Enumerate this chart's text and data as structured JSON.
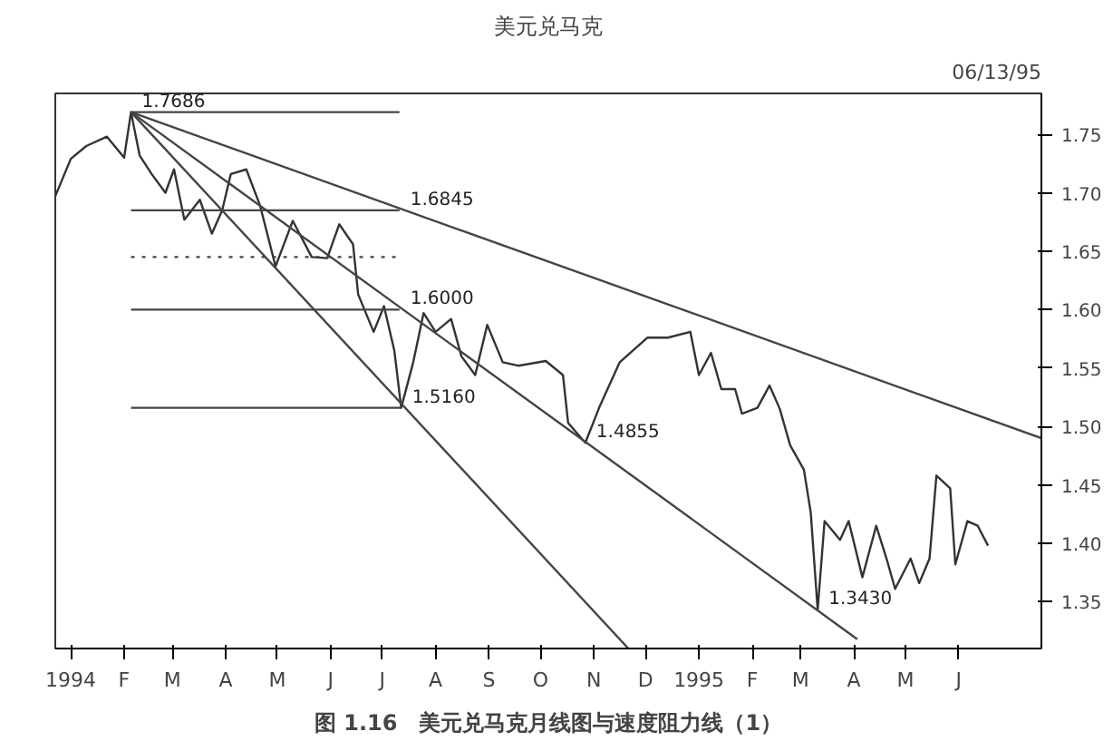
{
  "chart_data": {
    "type": "line",
    "title": "美元兑马克",
    "subtitle": "06/13/95",
    "xlim": [
      "1993-12-23",
      "1995-07-19"
    ],
    "ylim": [
      1.31,
      1.785
    ],
    "xticks": [
      {
        "value": "1994-01-01",
        "label": "1994"
      },
      {
        "value": "1994-02-01",
        "label": "F"
      },
      {
        "value": "1994-03-01",
        "label": "M"
      },
      {
        "value": "1994-04-01",
        "label": "A"
      },
      {
        "value": "1994-05-01",
        "label": "M"
      },
      {
        "value": "1994-06-01",
        "label": "J"
      },
      {
        "value": "1994-07-01",
        "label": "J"
      },
      {
        "value": "1994-08-01",
        "label": "A"
      },
      {
        "value": "1994-09-01",
        "label": "S"
      },
      {
        "value": "1994-10-01",
        "label": "O"
      },
      {
        "value": "1994-11-01",
        "label": "N"
      },
      {
        "value": "1994-12-01",
        "label": "D"
      },
      {
        "value": "1995-01-01",
        "label": "1995"
      },
      {
        "value": "1995-02-01",
        "label": "F"
      },
      {
        "value": "1995-03-01",
        "label": "M"
      },
      {
        "value": "1995-04-01",
        "label": "A"
      },
      {
        "value": "1995-05-01",
        "label": "M"
      },
      {
        "value": "1995-06-01",
        "label": "J"
      }
    ],
    "yticks": [
      {
        "value": 1.35,
        "label": "1.35"
      },
      {
        "value": 1.4,
        "label": "1.40"
      },
      {
        "value": 1.45,
        "label": "1.45"
      },
      {
        "value": 1.5,
        "label": "1.50"
      },
      {
        "value": 1.55,
        "label": "1.55"
      },
      {
        "value": 1.6,
        "label": "1.60"
      },
      {
        "value": 1.65,
        "label": "1.65"
      },
      {
        "value": 1.7,
        "label": "1.70"
      },
      {
        "value": 1.75,
        "label": "1.75"
      }
    ],
    "grid": false,
    "marker": "none",
    "series": [
      {
        "color": "#333333",
        "x": [
          "1993-12-23",
          "1994-01-01",
          "1994-01-10",
          "1994-01-22",
          "1994-02-01",
          "1994-02-05",
          "1994-02-10",
          "1994-02-17",
          "1994-02-25",
          "1994-03-02",
          "1994-03-08",
          "1994-03-17",
          "1994-03-24",
          "1994-03-30",
          "1994-04-04",
          "1994-04-13",
          "1994-04-21",
          "1994-04-30",
          "1994-05-10",
          "1994-05-21",
          "1994-05-30",
          "1994-06-06",
          "1994-06-14",
          "1994-06-17",
          "1994-06-26",
          "1994-07-02",
          "1994-07-08",
          "1994-07-12",
          "1994-07-19",
          "1994-07-25",
          "1994-08-01",
          "1994-08-10",
          "1994-08-16",
          "1994-08-24",
          "1994-08-31",
          "1994-09-09",
          "1994-09-18",
          "1994-10-04",
          "1994-10-14",
          "1994-10-17",
          "1994-10-27",
          "1994-11-04",
          "1994-11-16",
          "1994-12-02",
          "1994-12-14",
          "1994-12-27",
          "1995-01-01",
          "1995-01-08",
          "1995-01-14",
          "1995-01-22",
          "1995-01-26",
          "1995-02-04",
          "1995-02-11",
          "1995-02-17",
          "1995-02-23",
          "1995-03-03",
          "1995-03-07",
          "1995-03-11",
          "1995-03-15",
          "1995-03-24",
          "1995-03-29",
          "1995-04-06",
          "1995-04-14",
          "1995-04-20",
          "1995-04-25",
          "1995-05-04",
          "1995-05-09",
          "1995-05-15",
          "1995-05-19",
          "1995-05-27",
          "1995-05-30",
          "1995-06-06",
          "1995-06-12",
          "1995-06-18"
        ],
        "values": [
          1.697,
          1.729,
          1.74,
          1.748,
          1.73,
          1.769,
          1.732,
          1.716,
          1.7,
          1.72,
          1.677,
          1.694,
          1.665,
          1.685,
          1.716,
          1.72,
          1.689,
          1.637,
          1.676,
          1.645,
          1.644,
          1.673,
          1.656,
          1.613,
          1.581,
          1.603,
          1.565,
          1.516,
          1.555,
          1.597,
          1.581,
          1.592,
          1.56,
          1.544,
          1.587,
          1.555,
          1.552,
          1.556,
          1.544,
          1.503,
          1.486,
          1.516,
          1.555,
          1.576,
          1.576,
          1.581,
          1.544,
          1.563,
          1.532,
          1.532,
          1.511,
          1.516,
          1.535,
          1.515,
          1.484,
          1.463,
          1.426,
          1.343,
          1.419,
          1.403,
          1.419,
          1.371,
          1.415,
          1.387,
          1.361,
          1.387,
          1.366,
          1.387,
          1.458,
          1.447,
          1.382,
          1.419,
          1.415,
          1.398
        ]
      },
      {
        "color": "#444444",
        "x": [
          "1994-02-05",
          "1995-07-19"
        ],
        "values": [
          1.769,
          1.49
        ]
      },
      {
        "color": "#444444",
        "x": [
          "1994-02-05",
          "1995-04-03"
        ],
        "values": [
          1.769,
          1.318
        ]
      },
      {
        "color": "#444444",
        "x": [
          "1994-02-05",
          "1994-11-21"
        ],
        "values": [
          1.769,
          1.31
        ]
      },
      {
        "color": "#444444",
        "x": [
          "1994-02-05",
          "1994-07-11"
        ],
        "values": [
          1.769,
          1.769
        ]
      },
      {
        "color": "#444444",
        "x": [
          "1994-02-05",
          "1994-07-11"
        ],
        "values": [
          1.685,
          1.685
        ]
      },
      {
        "color": "#444444",
        "x": [
          "1994-02-05",
          "1994-07-11"
        ],
        "values": [
          1.645,
          1.645
        ],
        "line_style": "dotted"
      },
      {
        "color": "#444444",
        "x": [
          "1994-02-05",
          "1994-07-11"
        ],
        "values": [
          1.6,
          1.6
        ]
      },
      {
        "color": "#444444",
        "x": [
          "1994-02-05",
          "1994-07-12"
        ],
        "values": [
          1.516,
          1.516
        ]
      }
    ],
    "annotations": [
      {
        "text": "1.7686",
        "x": "1994-02-05",
        "y": 1.769
      },
      {
        "text": "1.6845",
        "x": "1994-07-11",
        "y": 1.685
      },
      {
        "text": "1.6000",
        "x": "1994-07-11",
        "y": 1.6
      },
      {
        "text": "1.5160",
        "x": "1994-07-12",
        "y": 1.516
      },
      {
        "text": "1.4855",
        "x": "1994-10-27",
        "y": 1.486
      },
      {
        "text": "1.3430",
        "x": "1995-03-11",
        "y": 1.343
      },
      "图 1.16　美元兑马克月线图与速度阻力线（1）"
    ]
  }
}
